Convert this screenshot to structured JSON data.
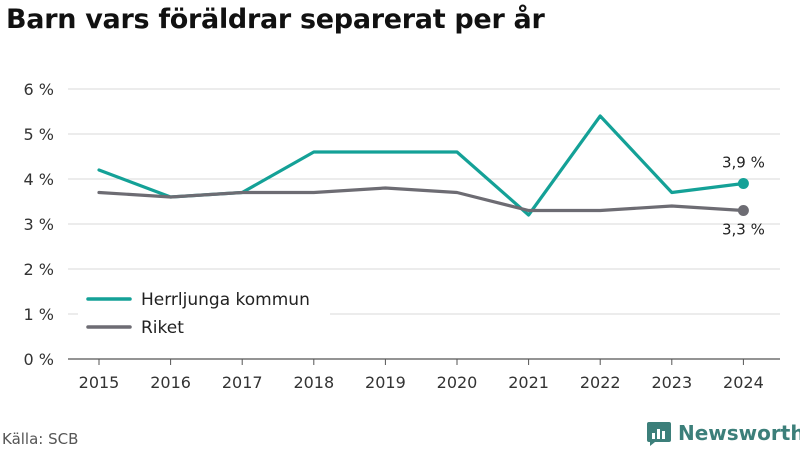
{
  "title": "Barn vars föräldrar separerat per år",
  "source": "Källa: SCB",
  "brand": {
    "name": "Newsworthy",
    "icon": "newsworthy-logo-icon",
    "color": "#3c7f7a"
  },
  "chart_data": {
    "type": "line",
    "title": "Barn vars föräldrar separerat per år",
    "xlabel": "",
    "ylabel": "",
    "x": [
      "2015",
      "2016",
      "2017",
      "2018",
      "2019",
      "2020",
      "2021",
      "2022",
      "2023",
      "2024"
    ],
    "ylim": [
      0,
      6
    ],
    "yticks": [
      0,
      1,
      2,
      3,
      4,
      5,
      6
    ],
    "ytick_labels": [
      "0 %",
      "1 %",
      "2 %",
      "3 %",
      "4 %",
      "5 %",
      "6 %"
    ],
    "grid": true,
    "legend_position": "bottom-left",
    "series": [
      {
        "name": "Herrljunga kommun",
        "color": "#14a197",
        "values": [
          4.2,
          3.6,
          3.7,
          4.6,
          4.6,
          4.6,
          3.2,
          5.4,
          3.7,
          3.9
        ],
        "end_label": "3,9 %"
      },
      {
        "name": "Riket",
        "color": "#6d6c73",
        "values": [
          3.7,
          3.6,
          3.7,
          3.7,
          3.8,
          3.7,
          3.3,
          3.3,
          3.4,
          3.3
        ],
        "end_label": "3,3 %"
      }
    ]
  }
}
